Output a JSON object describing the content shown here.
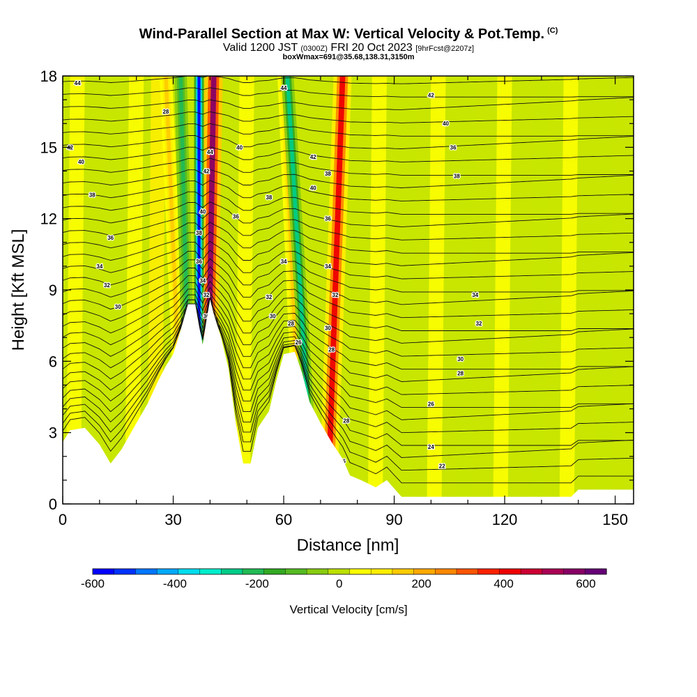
{
  "titles": {
    "main": "Wind-Parallel Section at Max W: Vertical Velocity & Pot.Temp.",
    "copyright": "(C)",
    "valid_prefix": "Valid 1200 JST",
    "valid_utc": "(0300Z)",
    "valid_date": "FRI 20 Oct 2023",
    "forecast": "[9hrFcst@2207z]",
    "box": "boxWmax=691@35.68,138.31,3150m"
  },
  "chart_data": {
    "type": "heatmap",
    "title": "Wind-Parallel Section at Max W: Vertical Velocity & Pot.Temp.",
    "xlabel": "Distance [nm]",
    "ylabel": "Height [Kft MSL]",
    "xlim": [
      0,
      155
    ],
    "ylim": [
      0,
      18
    ],
    "xticks": [
      0,
      30,
      60,
      90,
      120,
      150
    ],
    "yticks": [
      0,
      3,
      6,
      9,
      12,
      15,
      18
    ],
    "terrain_kft": [
      [
        0,
        2.6
      ],
      [
        2,
        3.1
      ],
      [
        6,
        3.2
      ],
      [
        10,
        2.5
      ],
      [
        13,
        1.7
      ],
      [
        16,
        2.3
      ],
      [
        20,
        3.4
      ],
      [
        23,
        4.2
      ],
      [
        26,
        5.2
      ],
      [
        28,
        5.8
      ],
      [
        30,
        6.3
      ],
      [
        32,
        7.3
      ],
      [
        34,
        8.4
      ],
      [
        36,
        8.4
      ],
      [
        37,
        7.5
      ],
      [
        38,
        6.7
      ],
      [
        39,
        7.7
      ],
      [
        40,
        8.6
      ],
      [
        41,
        8.0
      ],
      [
        43,
        7.0
      ],
      [
        45,
        5.7
      ],
      [
        47,
        3.4
      ],
      [
        49,
        1.7
      ],
      [
        51,
        1.7
      ],
      [
        53,
        3.2
      ],
      [
        56,
        3.9
      ],
      [
        58,
        5.2
      ],
      [
        60,
        6.3
      ],
      [
        63,
        6.4
      ],
      [
        65,
        5.5
      ],
      [
        67,
        4.3
      ],
      [
        70,
        3.4
      ],
      [
        73,
        2.6
      ],
      [
        76,
        1.9
      ],
      [
        78,
        1.2
      ],
      [
        81,
        1.0
      ],
      [
        85,
        0.7
      ],
      [
        88,
        1.0
      ],
      [
        92,
        0.3
      ],
      [
        120,
        0.3
      ],
      [
        138,
        0.3
      ],
      [
        140,
        0.6
      ],
      [
        150,
        0.6
      ],
      [
        155,
        0.6
      ]
    ],
    "updraft_bands": [
      {
        "x_top": 41,
        "x_bottom": 39,
        "w_max_cms": 550
      },
      {
        "x_top": 76,
        "x_bottom": 72,
        "w_max_cms": 400
      },
      {
        "x_top": 28,
        "x_bottom": 33,
        "w_max_cms": 150
      },
      {
        "x_top": 60,
        "x_bottom": 65,
        "w_max_cms": 150
      }
    ],
    "downdraft_bands": [
      {
        "x_top": 37,
        "x_bottom": 37,
        "w_min_cms": -600
      },
      {
        "x_top": 61,
        "x_bottom": 68,
        "w_min_cms": -250
      },
      {
        "x_top": 32,
        "x_bottom": 35,
        "w_min_cms": -200
      }
    ],
    "isentropes_K": [
      22,
      24,
      26,
      28,
      30,
      32,
      34,
      36,
      38,
      40,
      42,
      44
    ],
    "contour_labels": [
      "44",
      "42",
      "40",
      "38",
      "36",
      "34",
      "32",
      "30",
      "28",
      "44",
      "42",
      "40",
      "38",
      "36",
      "34",
      "32",
      "30",
      "44",
      "40",
      "38",
      "36",
      "34",
      "32",
      "30",
      "28",
      "26",
      "42",
      "40",
      "38",
      "36",
      "34",
      "32",
      "30",
      "28",
      "28",
      "26",
      "42",
      "40",
      "36",
      "38",
      "34",
      "32",
      "30",
      "28",
      "26",
      "24",
      "22"
    ],
    "colorbar": {
      "title": "Vertical Velocity [cm/s]",
      "min": -600,
      "max": 650,
      "tick_values": [
        -600,
        -400,
        -200,
        0,
        200,
        400,
        600
      ],
      "tick_labels": [
        "-600",
        "-400",
        "-200",
        "0",
        "200",
        "400",
        "600"
      ],
      "colors": [
        "#0000ff",
        "#0033ff",
        "#0077ff",
        "#00aaff",
        "#00ddee",
        "#00eecc",
        "#00cc88",
        "#22bb55",
        "#33aa22",
        "#55bb22",
        "#88cc11",
        "#bbe000",
        "#ffff00",
        "#ffee00",
        "#ffcc00",
        "#ffaa00",
        "#ff8800",
        "#ff5500",
        "#ff2200",
        "#ee0000",
        "#cc0033",
        "#aa0055",
        "#880066",
        "#660077"
      ]
    }
  }
}
